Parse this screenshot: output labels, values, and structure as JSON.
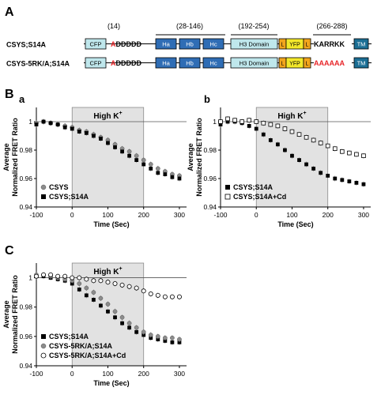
{
  "panel_labels": {
    "A": "A",
    "B": "B",
    "a": "a",
    "b": "b",
    "C": "C"
  },
  "constructs": {
    "residue_ranges": [
      "(14)",
      "(28-146)",
      "(192-254)",
      "(266-288)"
    ],
    "rows": [
      {
        "name": "CSYS;S14A",
        "mutated_residue": "A",
        "acidic_residues": "DDDDD",
        "tail": "KARRKK",
        "tail_mutated": false,
        "domains": {
          "cfp": "CFP",
          "ha": "Ha",
          "hb": "Hb",
          "hc": "Hc",
          "h3": "H3 Domain",
          "l": "L",
          "yfp": "YFP",
          "tm": "TM"
        }
      },
      {
        "name": "CSYS-5RK/A;S14A",
        "mutated_residue": "A",
        "acidic_residues": "DDDDD",
        "tail": "AAAAAA",
        "tail_mutated": true,
        "domains": {
          "cfp": "CFP",
          "ha": "Ha",
          "hb": "Hb",
          "hc": "Hc",
          "h3": "H3 Domain",
          "l": "L",
          "yfp": "YFP",
          "tm": "TM"
        }
      }
    ],
    "colors": {
      "cfp": "#bfe7ec",
      "h_domain": "#2f6db5",
      "h3": "#bfe7ec",
      "linker": "#f2a51c",
      "yfp": "#f3e82a",
      "tm": "#1b6e94",
      "mutation": "#e8262a"
    }
  },
  "chart_data": [
    {
      "type": "scatter",
      "panel": "a",
      "title": "",
      "xlabel": "Time (Sec)",
      "ylabel": "Average Normalized FRET Ratio",
      "xlim": [
        -100,
        320
      ],
      "ylim": [
        0.94,
        1.01
      ],
      "xticks": [
        -100,
        0,
        100,
        200,
        300
      ],
      "yticks": [
        0.94,
        0.96,
        0.98,
        1
      ],
      "shaded_region": {
        "x": [
          0,
          200
        ],
        "label": "High K",
        "label_sup": "+"
      },
      "reference_line_y": 1,
      "legend_position": "bottom-left",
      "series": [
        {
          "name": "CSYS",
          "marker": "circle",
          "color": "#8c8c8c",
          "x": [
            -100,
            -80,
            -60,
            -40,
            -20,
            0,
            20,
            40,
            60,
            80,
            100,
            120,
            140,
            160,
            180,
            200,
            220,
            240,
            260,
            280,
            300
          ],
          "y": [
            0.999,
            1.0,
            0.999,
            0.998,
            0.997,
            0.996,
            0.994,
            0.993,
            0.991,
            0.989,
            0.987,
            0.984,
            0.981,
            0.979,
            0.976,
            0.973,
            0.97,
            0.967,
            0.965,
            0.963,
            0.962
          ]
        },
        {
          "name": "CSYS;S14A",
          "marker": "square",
          "color": "#000000",
          "x": [
            -100,
            -80,
            -60,
            -40,
            -20,
            0,
            20,
            40,
            60,
            80,
            100,
            120,
            140,
            160,
            180,
            200,
            220,
            240,
            260,
            280,
            300
          ],
          "y": [
            0.998,
            1.0,
            0.999,
            0.998,
            0.996,
            0.995,
            0.993,
            0.992,
            0.99,
            0.988,
            0.985,
            0.982,
            0.979,
            0.976,
            0.973,
            0.97,
            0.967,
            0.964,
            0.963,
            0.961,
            0.96
          ]
        }
      ]
    },
    {
      "type": "scatter",
      "panel": "b",
      "title": "",
      "xlabel": "Time (Sec)",
      "ylabel": "Average Normalized FRET Ratio",
      "xlim": [
        -100,
        320
      ],
      "ylim": [
        0.94,
        1.01
      ],
      "xticks": [
        -100,
        0,
        100,
        200,
        300
      ],
      "yticks": [
        0.94,
        0.96,
        0.98,
        1
      ],
      "shaded_region": {
        "x": [
          0,
          200
        ],
        "label": "High K",
        "label_sup": "+"
      },
      "reference_line_y": 1,
      "legend_position": "bottom-left",
      "series": [
        {
          "name": "CSYS;S14A",
          "marker": "square",
          "color": "#000000",
          "x": [
            -100,
            -80,
            -60,
            -40,
            -20,
            0,
            20,
            40,
            60,
            80,
            100,
            120,
            140,
            160,
            180,
            200,
            220,
            240,
            260,
            280,
            300
          ],
          "y": [
            0.998,
            1.0,
            1.0,
            0.999,
            0.997,
            0.995,
            0.991,
            0.987,
            0.984,
            0.98,
            0.976,
            0.973,
            0.97,
            0.967,
            0.964,
            0.962,
            0.96,
            0.959,
            0.958,
            0.957,
            0.956
          ]
        },
        {
          "name": "CSYS;S14A+Cd",
          "marker": "open-square",
          "color": "#000000",
          "x": [
            -100,
            -80,
            -60,
            -40,
            -20,
            0,
            20,
            40,
            60,
            80,
            100,
            120,
            140,
            160,
            180,
            200,
            220,
            240,
            260,
            280,
            300
          ],
          "y": [
            1.0,
            1.002,
            1.001,
            1.0,
            1.001,
            1.0,
            0.999,
            0.998,
            0.997,
            0.995,
            0.993,
            0.991,
            0.989,
            0.987,
            0.985,
            0.983,
            0.981,
            0.979,
            0.978,
            0.977,
            0.976
          ]
        }
      ]
    },
    {
      "type": "scatter",
      "panel": "C",
      "title": "",
      "xlabel": "Time (Sec)",
      "ylabel": "Average Normalized FRET Ratio",
      "xlim": [
        -100,
        320
      ],
      "ylim": [
        0.94,
        1.01
      ],
      "xticks": [
        -100,
        0,
        100,
        200,
        300
      ],
      "yticks": [
        0.94,
        0.96,
        0.98,
        1
      ],
      "shaded_region": {
        "x": [
          0,
          200
        ],
        "label": "High K",
        "label_sup": "+"
      },
      "reference_line_y": 1,
      "legend_position": "bottom-left",
      "series": [
        {
          "name": "CSYS;S14A",
          "marker": "square",
          "color": "#000000",
          "x": [
            -100,
            -80,
            -60,
            -40,
            -20,
            0,
            20,
            40,
            60,
            80,
            100,
            120,
            140,
            160,
            180,
            200,
            220,
            240,
            260,
            280,
            300
          ],
          "y": [
            1.001,
            1.001,
            1.0,
            0.999,
            0.998,
            0.996,
            0.992,
            0.988,
            0.985,
            0.981,
            0.977,
            0.973,
            0.969,
            0.966,
            0.963,
            0.961,
            0.959,
            0.958,
            0.957,
            0.956,
            0.956
          ]
        },
        {
          "name": "CSYS-5RK/A;S14A",
          "marker": "circle",
          "color": "#8c8c8c",
          "x": [
            -100,
            -80,
            -60,
            -40,
            -20,
            0,
            20,
            40,
            60,
            80,
            100,
            120,
            140,
            160,
            180,
            200,
            220,
            240,
            260,
            280,
            300
          ],
          "y": [
            1.002,
            1.002,
            1.001,
            1.0,
            0.999,
            0.998,
            0.996,
            0.993,
            0.99,
            0.986,
            0.982,
            0.977,
            0.973,
            0.969,
            0.966,
            0.963,
            0.961,
            0.96,
            0.959,
            0.959,
            0.958
          ]
        },
        {
          "name": "CSYS-5RK/A;S14A+Cd",
          "marker": "open-circle",
          "color": "#000000",
          "x": [
            -100,
            -80,
            -60,
            -40,
            -20,
            0,
            20,
            40,
            60,
            80,
            100,
            120,
            140,
            160,
            180,
            200,
            220,
            240,
            260,
            280,
            300
          ],
          "y": [
            1.001,
            1.002,
            1.002,
            1.001,
            1.001,
            1.0,
            1.0,
            0.999,
            0.998,
            0.998,
            0.997,
            0.996,
            0.995,
            0.994,
            0.993,
            0.991,
            0.989,
            0.988,
            0.987,
            0.987,
            0.987
          ]
        }
      ]
    }
  ]
}
